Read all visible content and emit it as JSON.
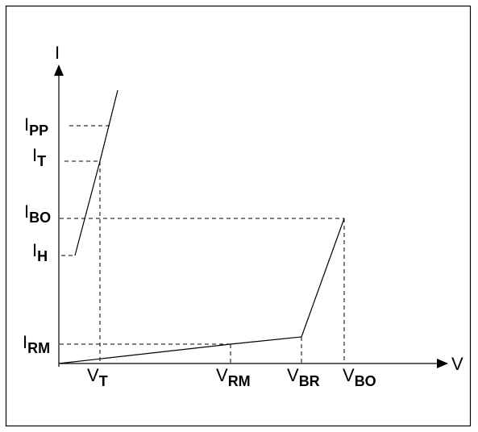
{
  "axes": {
    "y_main": "I",
    "x_main": "V"
  },
  "current_labels": {
    "pp": {
      "main": "I",
      "sub": "PP"
    },
    "t": {
      "main": "I",
      "sub": "T"
    },
    "bo": {
      "main": "I",
      "sub": "BO"
    },
    "h": {
      "main": "I",
      "sub": "H"
    },
    "rm": {
      "main": "I",
      "sub": "RM"
    }
  },
  "voltage_labels": {
    "t": {
      "main": "V",
      "sub": "T"
    },
    "rm": {
      "main": "V",
      "sub": "RM"
    },
    "br": {
      "main": "V",
      "sub": "BR"
    },
    "bo": {
      "main": "V",
      "sub": "BO"
    }
  }
}
